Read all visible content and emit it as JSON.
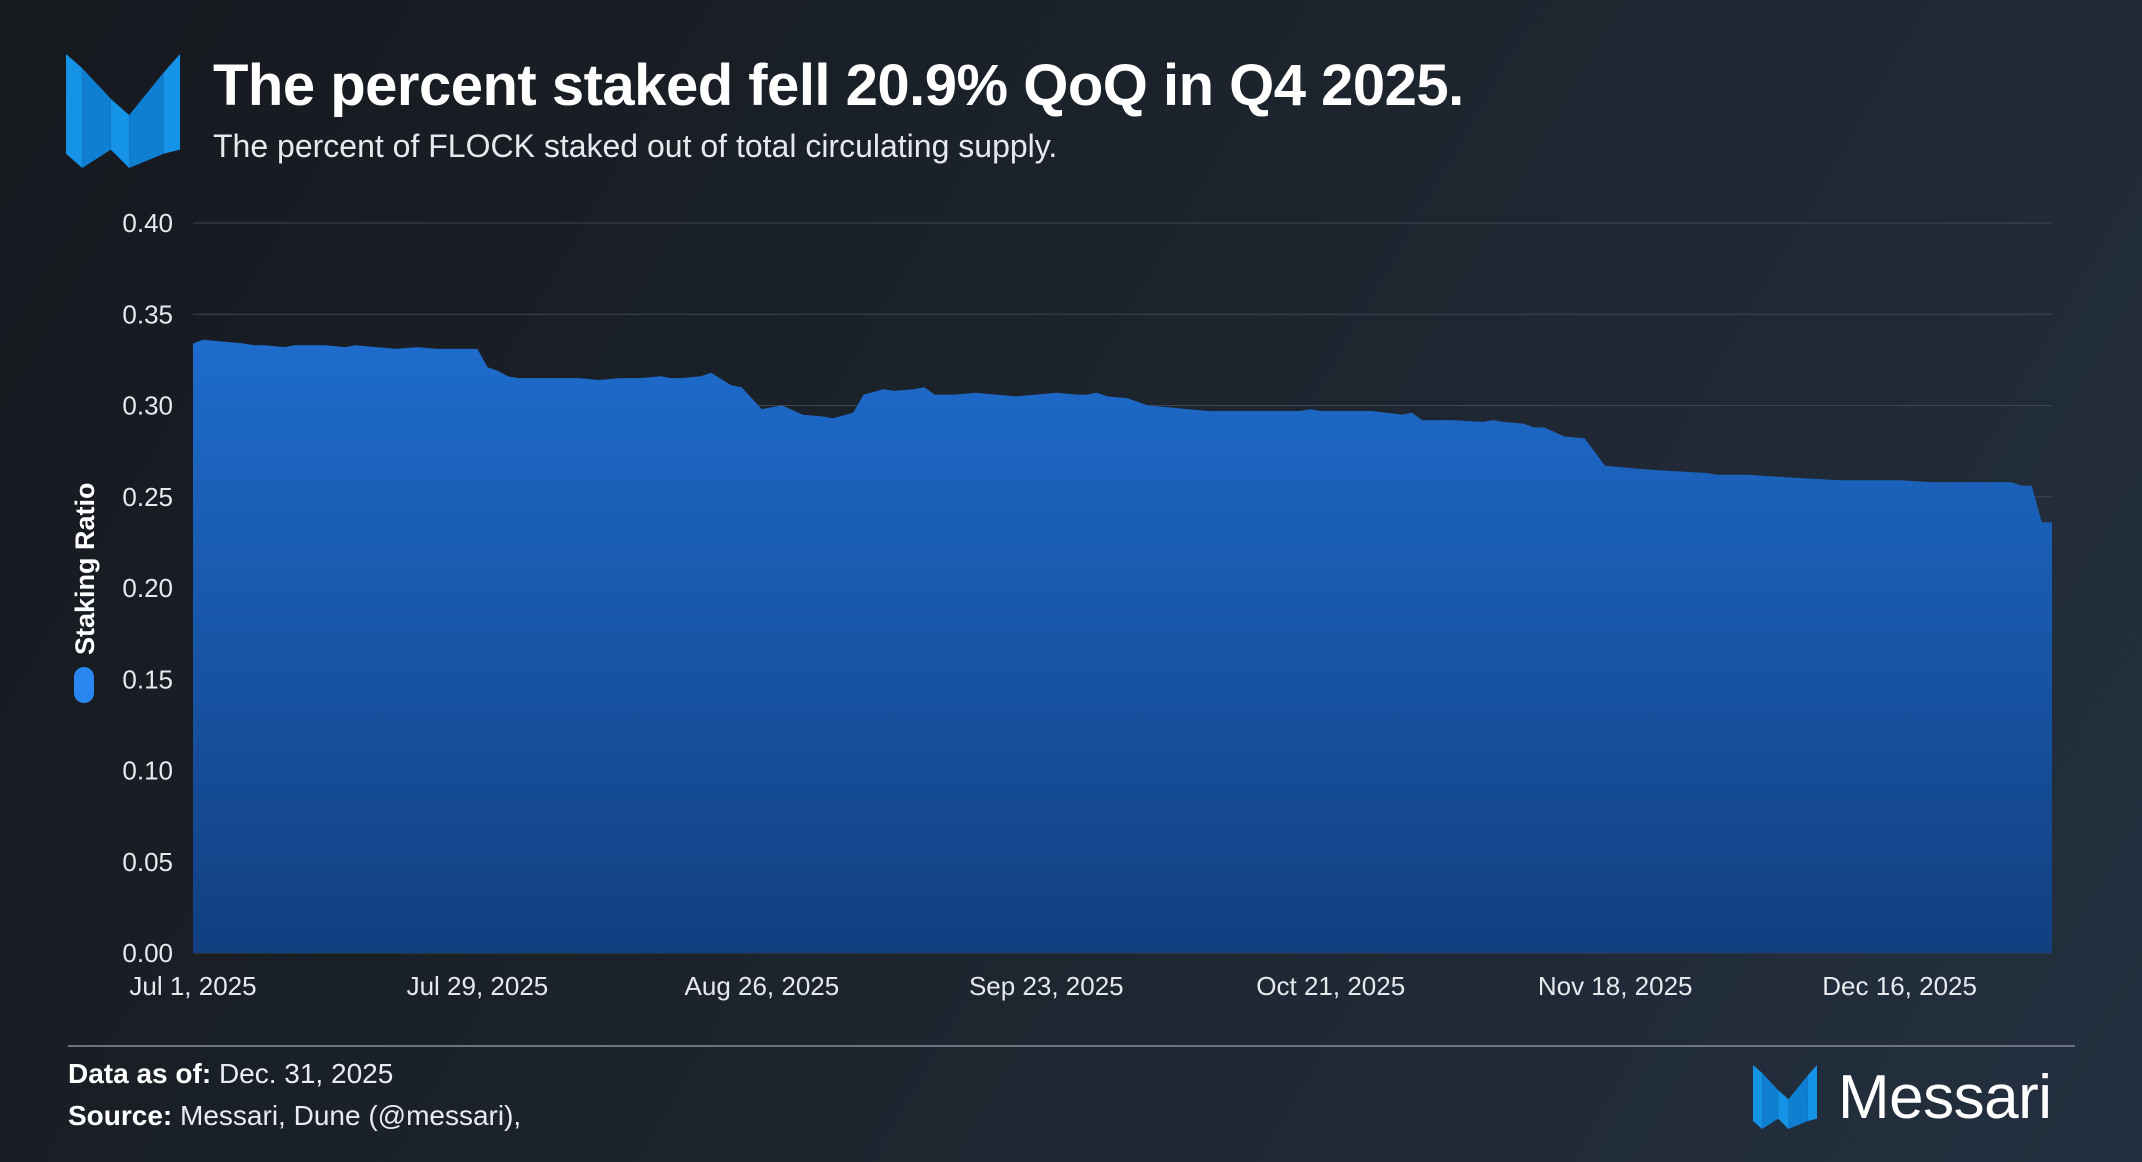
{
  "header": {
    "title": "The percent staked fell 20.9% QoQ in Q4 2025.",
    "subtitle": "The percent of FLOCK staked out of total circulating supply."
  },
  "footer": {
    "data_as_of_label": "Data as of:",
    "data_as_of_value": "Dec. 31, 2025",
    "source_label": "Source:",
    "source_value": "Messari, Dune (@messari),"
  },
  "brand": {
    "name": "Messari"
  },
  "icons": {
    "logo": "messari-logo-icon",
    "legend_swatch": "legend-swatch-icon"
  },
  "colors": {
    "area_top": "#1e6ccd",
    "area_bottom": "#123f80",
    "accent": "#1593e6",
    "legend": "#2a86f0"
  },
  "chart_data": {
    "type": "area",
    "title": "The percent staked fell 20.9% QoQ in Q4 2025.",
    "subtitle": "The percent of FLOCK staked out of total circulating supply.",
    "xlabel": "",
    "ylabel": "Staking Ratio",
    "ylim": [
      0,
      0.4
    ],
    "yticks": [
      "0.00",
      "0.05",
      "0.10",
      "0.15",
      "0.20",
      "0.25",
      "0.30",
      "0.35",
      "0.40"
    ],
    "xticks": [
      "Jul 1, 2025",
      "Jul 29, 2025",
      "Aug 26, 2025",
      "Sep 23, 2025",
      "Oct 21, 2025",
      "Nov 18, 2025",
      "Dec 16, 2025"
    ],
    "grid": true,
    "legend": "left-vertical",
    "series": [
      {
        "name": "Staking Ratio",
        "x": [
          "2025-07-01",
          "2025-07-02",
          "2025-07-04",
          "2025-07-06",
          "2025-07-07",
          "2025-07-08",
          "2025-07-10",
          "2025-07-11",
          "2025-07-12",
          "2025-07-14",
          "2025-07-16",
          "2025-07-17",
          "2025-07-19",
          "2025-07-21",
          "2025-07-23",
          "2025-07-25",
          "2025-07-26",
          "2025-07-27",
          "2025-07-29",
          "2025-07-30",
          "2025-07-31",
          "2025-08-01",
          "2025-08-02",
          "2025-08-03",
          "2025-08-04",
          "2025-08-06",
          "2025-08-08",
          "2025-08-10",
          "2025-08-12",
          "2025-08-14",
          "2025-08-16",
          "2025-08-17",
          "2025-08-18",
          "2025-08-20",
          "2025-08-21",
          "2025-08-23",
          "2025-08-24",
          "2025-08-26",
          "2025-08-27",
          "2025-08-28",
          "2025-08-30",
          "2025-09-01",
          "2025-09-02",
          "2025-09-04",
          "2025-09-05",
          "2025-09-07",
          "2025-09-08",
          "2025-09-10",
          "2025-09-11",
          "2025-09-12",
          "2025-09-14",
          "2025-09-16",
          "2025-09-18",
          "2025-09-20",
          "2025-09-22",
          "2025-09-24",
          "2025-09-26",
          "2025-09-27",
          "2025-09-28",
          "2025-09-29",
          "2025-10-01",
          "2025-10-03",
          "2025-10-05",
          "2025-10-07",
          "2025-10-09",
          "2025-10-12",
          "2025-10-15",
          "2025-10-18",
          "2025-10-19",
          "2025-10-20",
          "2025-10-22",
          "2025-10-25",
          "2025-10-28",
          "2025-10-29",
          "2025-10-30",
          "2025-11-02",
          "2025-11-05",
          "2025-11-06",
          "2025-11-07",
          "2025-11-09",
          "2025-11-10",
          "2025-11-11",
          "2025-11-13",
          "2025-11-15",
          "2025-11-17",
          "2025-11-19",
          "2025-11-21",
          "2025-11-24",
          "2025-11-27",
          "2025-11-28",
          "2025-12-01",
          "2025-12-04",
          "2025-12-07",
          "2025-12-10",
          "2025-12-13",
          "2025-12-16",
          "2025-12-19",
          "2025-12-22",
          "2025-12-24",
          "2025-12-25",
          "2025-12-27",
          "2025-12-28",
          "2025-12-29",
          "2025-12-30",
          "2025-12-31"
        ],
        "y": [
          0.334,
          0.336,
          0.335,
          0.334,
          0.333,
          0.333,
          0.332,
          0.333,
          0.333,
          0.333,
          0.332,
          0.333,
          0.332,
          0.331,
          0.332,
          0.331,
          0.331,
          0.331,
          0.331,
          0.321,
          0.319,
          0.316,
          0.315,
          0.315,
          0.315,
          0.315,
          0.315,
          0.314,
          0.315,
          0.315,
          0.316,
          0.315,
          0.315,
          0.316,
          0.318,
          0.311,
          0.31,
          0.298,
          0.299,
          0.3,
          0.295,
          0.294,
          0.293,
          0.296,
          0.306,
          0.309,
          0.308,
          0.309,
          0.31,
          0.306,
          0.306,
          0.307,
          0.306,
          0.305,
          0.306,
          0.307,
          0.306,
          0.306,
          0.307,
          0.305,
          0.304,
          0.3,
          0.299,
          0.298,
          0.297,
          0.297,
          0.297,
          0.297,
          0.298,
          0.297,
          0.297,
          0.297,
          0.295,
          0.296,
          0.292,
          0.292,
          0.291,
          0.292,
          0.291,
          0.29,
          0.288,
          0.288,
          0.283,
          0.282,
          0.267,
          0.266,
          0.265,
          0.264,
          0.263,
          0.262,
          0.262,
          0.261,
          0.26,
          0.259,
          0.259,
          0.259,
          0.258,
          0.258,
          0.258,
          0.258,
          0.258,
          0.256,
          0.256,
          0.236,
          0.236
        ]
      }
    ]
  }
}
